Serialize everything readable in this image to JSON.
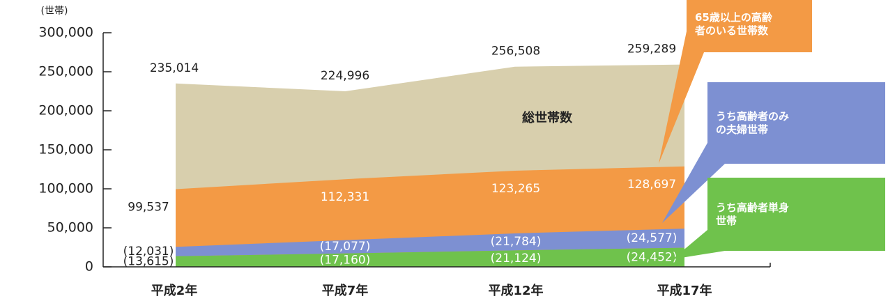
{
  "chart_data": {
    "type": "area",
    "y_label": "(世帯)",
    "annotation": "総世帯数",
    "categories": [
      "平成2年",
      "平成7年",
      "平成12年",
      "平成17年"
    ],
    "ylim": [
      0,
      300000
    ],
    "yticks": [
      0,
      {
        "value": 50000,
        "label": "50,000"
      },
      {
        "value": 100000,
        "label": "100,000"
      },
      {
        "value": 150000,
        "label": "150,000"
      },
      {
        "value": 200000,
        "label": "200,000"
      },
      {
        "value": 250000,
        "label": "250,000"
      },
      {
        "value": 300000,
        "label": "300,000"
      }
    ],
    "series": [
      {
        "name": "総世帯数",
        "color": "#d8cfad",
        "values": [
          235014,
          224996,
          256508,
          259289
        ],
        "value_labels": [
          "235,014",
          "224,996",
          "256,508",
          "259,289"
        ]
      },
      {
        "name": "65歳以上の高齢者のいる世帯数",
        "color": "#f39a45",
        "values": [
          99537,
          112331,
          123265,
          128697
        ],
        "value_labels": [
          "99,537",
          "112,331",
          "123,265",
          "128,697"
        ]
      },
      {
        "name": "うち高齢者のみの夫婦世帯",
        "color": "#7d90d2",
        "stacked": true,
        "values": [
          12031,
          17077,
          21784,
          24577
        ],
        "value_labels": [
          "(12,031)",
          "(17,077)",
          "(21,784)",
          "(24,577)"
        ]
      },
      {
        "name": "うち高齢者単身世帯",
        "color": "#6fc24c",
        "values": [
          13615,
          17160,
          21124,
          24452
        ],
        "value_labels": [
          "(13,615)",
          "(17,160)",
          "(21,124)",
          "(24,452)"
        ]
      }
    ]
  }
}
